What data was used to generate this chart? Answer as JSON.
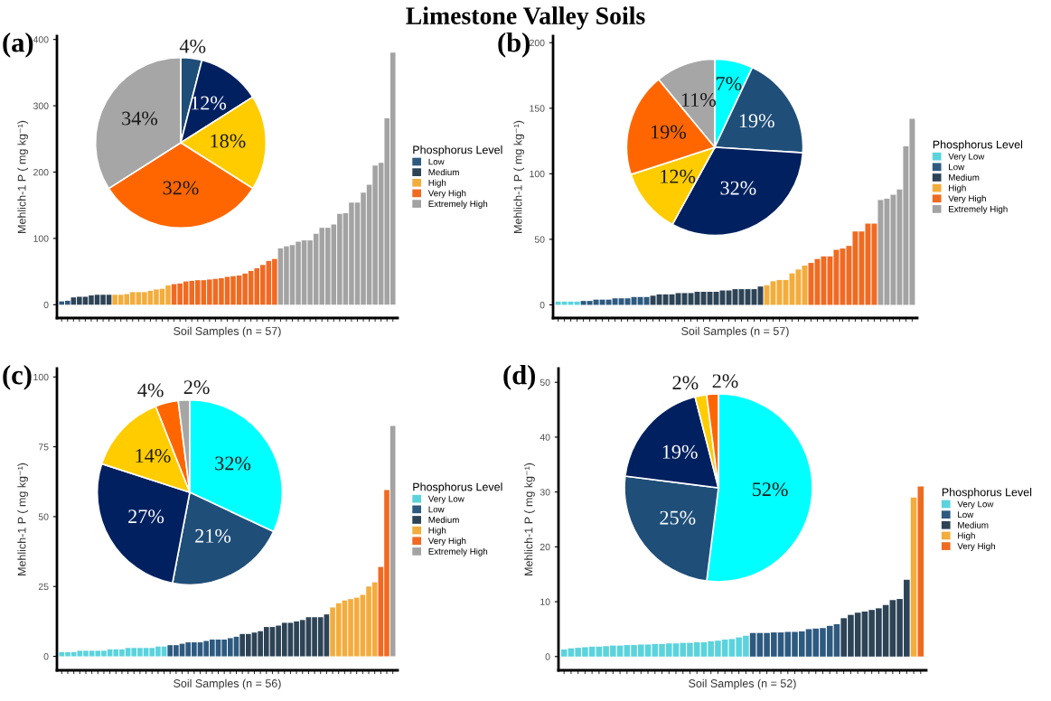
{
  "chart_data": [
    {
      "type": "bar",
      "title": "(a)",
      "annotations": [
        "Limestone Valley Soils"
      ],
      "xlabel": "Soil Samples (n = 57)",
      "ylabel": "Mehlich-1 P ( mg kg⁻¹)",
      "legend_title": "Phosphorus Level",
      "legend": "right",
      "tick_labels": "y",
      "categories": [
        null,
        null,
        null,
        null,
        null,
        null,
        null,
        null,
        null,
        null,
        null,
        null,
        null,
        null,
        null,
        null,
        null,
        null,
        null,
        null,
        null,
        null,
        null,
        null,
        null,
        null,
        null,
        null,
        null,
        null,
        null,
        null,
        null,
        null,
        null,
        null,
        null,
        null,
        null,
        null,
        null,
        null,
        null,
        null,
        null,
        null,
        null,
        null,
        null,
        null,
        null,
        null,
        null,
        null,
        null,
        null,
        null
      ],
      "ylim": [
        -20,
        405
      ],
      "yticks": [
        0,
        100,
        200,
        300,
        400
      ],
      "series": [
        {
          "name": "Low",
          "color": "#2e5a80",
          "values": [
            5,
            6,
            null,
            null,
            null,
            null,
            null,
            null,
            null,
            null,
            null,
            null,
            null,
            null,
            null,
            null,
            null,
            null,
            null,
            null,
            null,
            null,
            null,
            null,
            null,
            null,
            null,
            null,
            null,
            null,
            null,
            null,
            null,
            null,
            null,
            null,
            null,
            null,
            null,
            null,
            null,
            null,
            null,
            null,
            null,
            null,
            null,
            null,
            null,
            null,
            null,
            null,
            null,
            null,
            null,
            null,
            null
          ]
        },
        {
          "name": "Medium",
          "color": "#2d4356",
          "values": [
            null,
            null,
            11,
            12,
            12,
            14,
            15,
            15,
            15,
            null,
            null,
            null,
            null,
            null,
            null,
            null,
            null,
            null,
            null,
            null,
            null,
            null,
            null,
            null,
            null,
            null,
            null,
            null,
            null,
            null,
            null,
            null,
            null,
            null,
            null,
            null,
            null,
            null,
            null,
            null,
            null,
            null,
            null,
            null,
            null,
            null,
            null,
            null,
            null,
            null,
            null,
            null,
            null,
            null,
            null,
            null,
            null
          ]
        },
        {
          "name": "High",
          "color": "#f3ad3c",
          "values": [
            null,
            null,
            null,
            null,
            null,
            null,
            null,
            null,
            null,
            15,
            15,
            16,
            19,
            19,
            19,
            21,
            23,
            24,
            29,
            null,
            null,
            null,
            null,
            null,
            null,
            null,
            null,
            null,
            null,
            null,
            null,
            null,
            null,
            null,
            null,
            null,
            null,
            null,
            null,
            null,
            null,
            null,
            null,
            null,
            null,
            null,
            null,
            null,
            null,
            null,
            null,
            null,
            null,
            null,
            null,
            null,
            null
          ]
        },
        {
          "name": "Very High",
          "color": "#f06a22",
          "values": [
            null,
            null,
            null,
            null,
            null,
            null,
            null,
            null,
            null,
            null,
            null,
            null,
            null,
            null,
            null,
            null,
            null,
            null,
            null,
            31,
            32,
            35,
            36,
            37,
            37,
            38,
            39,
            40,
            42,
            43,
            44,
            47,
            51,
            55,
            60,
            66,
            69,
            null,
            null,
            null,
            null,
            null,
            null,
            null,
            null,
            null,
            null,
            null,
            null,
            null,
            null,
            null,
            null,
            null,
            null,
            null,
            null
          ]
        },
        {
          "name": "Extremely High",
          "color": "#a3a3a3",
          "values": [
            null,
            null,
            null,
            null,
            null,
            null,
            null,
            null,
            null,
            null,
            null,
            null,
            null,
            null,
            null,
            null,
            null,
            null,
            null,
            null,
            null,
            null,
            null,
            null,
            null,
            null,
            null,
            null,
            null,
            null,
            null,
            null,
            null,
            null,
            null,
            null,
            null,
            85,
            88,
            90,
            95,
            97,
            97,
            107,
            116,
            116,
            121,
            137,
            138,
            154,
            154,
            169,
            181,
            210,
            214,
            281,
            380
          ]
        }
      ]
    },
    {
      "type": "pie",
      "categories": [
        null,
        null,
        null,
        null,
        null
      ],
      "values": [
        4,
        12,
        18,
        32,
        34
      ],
      "value_labels": [
        "4%",
        "12%",
        "18%",
        "32%",
        "34%"
      ],
      "colors": [
        "#1f4e79",
        "#002060",
        "#ffcc00",
        "#ff6600",
        "#a6a6a6"
      ]
    },
    {
      "type": "bar",
      "title": "(b)",
      "xlabel": "Soil Samples (n = 57)",
      "ylabel": "Mehlich-1 P ( mg kg⁻¹)",
      "legend_title": "Phosphorus Level",
      "legend": "right",
      "tick_labels": "y",
      "categories": [
        null,
        null,
        null,
        null,
        null,
        null,
        null,
        null,
        null,
        null,
        null,
        null,
        null,
        null,
        null,
        null,
        null,
        null,
        null,
        null,
        null,
        null,
        null,
        null,
        null,
        null,
        null,
        null,
        null,
        null,
        null,
        null,
        null,
        null,
        null,
        null,
        null,
        null,
        null,
        null,
        null,
        null,
        null,
        null,
        null,
        null,
        null,
        null,
        null,
        null,
        null,
        null,
        null,
        null,
        null,
        null,
        null
      ],
      "ylim": [
        -10,
        205
      ],
      "yticks": [
        0,
        50,
        100,
        150,
        200
      ],
      "series": [
        {
          "name": "Very Low",
          "color": "#5bd3dd",
          "values": [
            2.5,
            2.5,
            2.5,
            2.5,
            null,
            null,
            null,
            null,
            null,
            null,
            null,
            null,
            null,
            null,
            null,
            null,
            null,
            null,
            null,
            null,
            null,
            null,
            null,
            null,
            null,
            null,
            null,
            null,
            null,
            null,
            null,
            null,
            null,
            null,
            null,
            null,
            null,
            null,
            null,
            null,
            null,
            null,
            null,
            null,
            null,
            null,
            null,
            null,
            null,
            null,
            null,
            null,
            null,
            null,
            null,
            null,
            null
          ]
        },
        {
          "name": "Low",
          "color": "#2e5a80",
          "values": [
            null,
            null,
            null,
            null,
            3,
            3,
            4,
            4,
            4,
            5,
            5,
            5,
            6,
            6,
            6,
            null,
            null,
            null,
            null,
            null,
            null,
            null,
            null,
            null,
            null,
            null,
            null,
            null,
            null,
            null,
            null,
            null,
            null,
            null,
            null,
            null,
            null,
            null,
            null,
            null,
            null,
            null,
            null,
            null,
            null,
            null,
            null,
            null,
            null,
            null,
            null,
            null,
            null,
            null,
            null,
            null,
            null
          ]
        },
        {
          "name": "Medium",
          "color": "#2d4356",
          "values": [
            null,
            null,
            null,
            null,
            null,
            null,
            null,
            null,
            null,
            null,
            null,
            null,
            null,
            null,
            null,
            7,
            8,
            8,
            8,
            9,
            9,
            9,
            10,
            10,
            10,
            10,
            11,
            11,
            12,
            12,
            12,
            12,
            14,
            null,
            null,
            null,
            null,
            null,
            null,
            null,
            null,
            null,
            null,
            null,
            null,
            null,
            null,
            null,
            null,
            null,
            null,
            null,
            null,
            null,
            null,
            null,
            null
          ]
        },
        {
          "name": "High",
          "color": "#f3ad3c",
          "values": [
            null,
            null,
            null,
            null,
            null,
            null,
            null,
            null,
            null,
            null,
            null,
            null,
            null,
            null,
            null,
            null,
            null,
            null,
            null,
            null,
            null,
            null,
            null,
            null,
            null,
            null,
            null,
            null,
            null,
            null,
            null,
            null,
            null,
            15,
            18,
            19,
            19,
            24,
            27,
            30,
            null,
            null,
            null,
            null,
            null,
            null,
            null,
            null,
            null,
            null,
            null,
            null,
            null,
            null,
            null,
            null,
            null
          ]
        },
        {
          "name": "Very High",
          "color": "#f06a22",
          "values": [
            null,
            null,
            null,
            null,
            null,
            null,
            null,
            null,
            null,
            null,
            null,
            null,
            null,
            null,
            null,
            null,
            null,
            null,
            null,
            null,
            null,
            null,
            null,
            null,
            null,
            null,
            null,
            null,
            null,
            null,
            null,
            null,
            null,
            null,
            null,
            null,
            null,
            null,
            null,
            null,
            32,
            35,
            37,
            37,
            42,
            43,
            45,
            56,
            56,
            62,
            62,
            null,
            null,
            null,
            null,
            null,
            null
          ]
        },
        {
          "name": "Extremely High",
          "color": "#a3a3a3",
          "values": [
            null,
            null,
            null,
            null,
            null,
            null,
            null,
            null,
            null,
            null,
            null,
            null,
            null,
            null,
            null,
            null,
            null,
            null,
            null,
            null,
            null,
            null,
            null,
            null,
            null,
            null,
            null,
            null,
            null,
            null,
            null,
            null,
            null,
            null,
            null,
            null,
            null,
            null,
            null,
            null,
            null,
            null,
            null,
            null,
            null,
            null,
            null,
            null,
            null,
            null,
            null,
            80,
            81,
            84,
            88,
            121,
            142
          ]
        }
      ]
    },
    {
      "type": "pie",
      "categories": [
        null,
        null,
        null,
        null,
        null,
        null
      ],
      "values": [
        7,
        19,
        32,
        12,
        19,
        11
      ],
      "value_labels": [
        "7%",
        "19%",
        "32%",
        "12%",
        "19%",
        "11%"
      ],
      "colors": [
        "#00ffff",
        "#1f4e79",
        "#002060",
        "#ffcc00",
        "#ff6600",
        "#a6a6a6"
      ]
    },
    {
      "type": "bar",
      "title": "(c)",
      "xlabel": "Soil Samples (n = 56)",
      "ylabel": "Mehlich-1 P ( mg kg⁻¹)",
      "legend_title": "Phosphorus Level",
      "legend": "right",
      "tick_labels": "y",
      "categories": [
        null,
        null,
        null,
        null,
        null,
        null,
        null,
        null,
        null,
        null,
        null,
        null,
        null,
        null,
        null,
        null,
        null,
        null,
        null,
        null,
        null,
        null,
        null,
        null,
        null,
        null,
        null,
        null,
        null,
        null,
        null,
        null,
        null,
        null,
        null,
        null,
        null,
        null,
        null,
        null,
        null,
        null,
        null,
        null,
        null,
        null,
        null,
        null,
        null,
        null,
        null,
        null,
        null,
        null,
        null,
        null
      ],
      "ylim": [
        -5,
        103
      ],
      "yticks": [
        0,
        25,
        50,
        75,
        100
      ],
      "series": [
        {
          "name": "Very Low",
          "color": "#5bd3dd",
          "values": [
            1.5,
            1.5,
            1.5,
            2,
            2,
            2,
            2,
            2,
            2.5,
            2.5,
            2.5,
            3,
            3,
            3,
            3,
            3,
            3.5,
            3.5,
            null,
            null,
            null,
            null,
            null,
            null,
            null,
            null,
            null,
            null,
            null,
            null,
            null,
            null,
            null,
            null,
            null,
            null,
            null,
            null,
            null,
            null,
            null,
            null,
            null,
            null,
            null,
            null,
            null,
            null,
            null,
            null,
            null,
            null,
            null,
            null,
            null,
            null
          ]
        },
        {
          "name": "Low",
          "color": "#2e5a80",
          "values": [
            null,
            null,
            null,
            null,
            null,
            null,
            null,
            null,
            null,
            null,
            null,
            null,
            null,
            null,
            null,
            null,
            null,
            null,
            4,
            4,
            4.5,
            5,
            5,
            5,
            5.5,
            6,
            6,
            6,
            6.5,
            7,
            null,
            null,
            null,
            null,
            null,
            null,
            null,
            null,
            null,
            null,
            null,
            null,
            null,
            null,
            null,
            null,
            null,
            null,
            null,
            null,
            null,
            null,
            null,
            null,
            null,
            null
          ]
        },
        {
          "name": "Medium",
          "color": "#2d4356",
          "values": [
            null,
            null,
            null,
            null,
            null,
            null,
            null,
            null,
            null,
            null,
            null,
            null,
            null,
            null,
            null,
            null,
            null,
            null,
            null,
            null,
            null,
            null,
            null,
            null,
            null,
            null,
            null,
            null,
            null,
            null,
            8,
            8,
            8.5,
            9,
            10.5,
            10.5,
            11,
            12,
            12,
            12.5,
            13,
            14,
            14,
            14,
            15,
            null,
            null,
            null,
            null,
            null,
            null,
            null,
            null,
            null,
            null,
            null
          ]
        },
        {
          "name": "High",
          "color": "#f3ad3c",
          "values": [
            null,
            null,
            null,
            null,
            null,
            null,
            null,
            null,
            null,
            null,
            null,
            null,
            null,
            null,
            null,
            null,
            null,
            null,
            null,
            null,
            null,
            null,
            null,
            null,
            null,
            null,
            null,
            null,
            null,
            null,
            null,
            null,
            null,
            null,
            null,
            null,
            null,
            null,
            null,
            null,
            null,
            null,
            null,
            null,
            null,
            17.5,
            19,
            20,
            20.5,
            21,
            22,
            25,
            26.5,
            null,
            null,
            null
          ]
        },
        {
          "name": "Very High",
          "color": "#f06a22",
          "values": [
            null,
            null,
            null,
            null,
            null,
            null,
            null,
            null,
            null,
            null,
            null,
            null,
            null,
            null,
            null,
            null,
            null,
            null,
            null,
            null,
            null,
            null,
            null,
            null,
            null,
            null,
            null,
            null,
            null,
            null,
            null,
            null,
            null,
            null,
            null,
            null,
            null,
            null,
            null,
            null,
            null,
            null,
            null,
            null,
            null,
            null,
            null,
            null,
            null,
            null,
            null,
            null,
            null,
            32,
            59.5,
            null
          ]
        },
        {
          "name": "Extremely High",
          "color": "#a3a3a3",
          "values": [
            null,
            null,
            null,
            null,
            null,
            null,
            null,
            null,
            null,
            null,
            null,
            null,
            null,
            null,
            null,
            null,
            null,
            null,
            null,
            null,
            null,
            null,
            null,
            null,
            null,
            null,
            null,
            null,
            null,
            null,
            null,
            null,
            null,
            null,
            null,
            null,
            null,
            null,
            null,
            null,
            null,
            null,
            null,
            null,
            null,
            null,
            null,
            null,
            null,
            null,
            null,
            null,
            null,
            null,
            null,
            82.5
          ]
        }
      ]
    },
    {
      "type": "pie",
      "categories": [
        null,
        null,
        null,
        null,
        null,
        null
      ],
      "values": [
        32,
        21,
        27,
        14,
        4,
        2
      ],
      "value_labels": [
        "32%",
        "21%",
        "27%",
        "14%",
        "4%",
        "2%"
      ],
      "colors": [
        "#00ffff",
        "#1f4e79",
        "#002060",
        "#ffcc00",
        "#ff6600",
        "#a6a6a6"
      ]
    },
    {
      "type": "bar",
      "title": "(d)",
      "xlabel": "Soil Samples (n = 52)",
      "ylabel": "Mehlich-1 P ( mg kg⁻¹)",
      "legend_title": "Phosphorus Level",
      "legend": "right",
      "tick_labels": "y",
      "categories": [
        null,
        null,
        null,
        null,
        null,
        null,
        null,
        null,
        null,
        null,
        null,
        null,
        null,
        null,
        null,
        null,
        null,
        null,
        null,
        null,
        null,
        null,
        null,
        null,
        null,
        null,
        null,
        null,
        null,
        null,
        null,
        null,
        null,
        null,
        null,
        null,
        null,
        null,
        null,
        null,
        null,
        null,
        null,
        null,
        null,
        null,
        null,
        null,
        null,
        null,
        null,
        null
      ],
      "ylim": [
        -2.5,
        52.5
      ],
      "yticks": [
        0,
        10,
        20,
        30,
        40,
        50
      ],
      "series": [
        {
          "name": "Very Low",
          "color": "#5bd3dd",
          "values": [
            1.3,
            1.5,
            1.6,
            1.7,
            1.8,
            1.8,
            1.9,
            2,
            2,
            2.1,
            2.1,
            2.2,
            2.2,
            2.3,
            2.3,
            2.4,
            2.4,
            2.5,
            2.5,
            2.6,
            2.6,
            2.8,
            2.9,
            3.1,
            3.2,
            3.5,
            3.8,
            null,
            null,
            null,
            null,
            null,
            null,
            null,
            null,
            null,
            null,
            null,
            null,
            null,
            null,
            null,
            null,
            null,
            null,
            null,
            null,
            null,
            null,
            null,
            null,
            null
          ]
        },
        {
          "name": "Low",
          "color": "#2e5a80",
          "values": [
            null,
            null,
            null,
            null,
            null,
            null,
            null,
            null,
            null,
            null,
            null,
            null,
            null,
            null,
            null,
            null,
            null,
            null,
            null,
            null,
            null,
            null,
            null,
            null,
            null,
            null,
            null,
            4.3,
            4.3,
            4.3,
            4.4,
            4.4,
            4.5,
            4.5,
            4.6,
            5,
            5.1,
            5.2,
            5.6,
            5.9,
            null,
            null,
            null,
            null,
            null,
            null,
            null,
            null,
            null,
            null,
            null,
            null
          ]
        },
        {
          "name": "Medium",
          "color": "#2d4356",
          "values": [
            null,
            null,
            null,
            null,
            null,
            null,
            null,
            null,
            null,
            null,
            null,
            null,
            null,
            null,
            null,
            null,
            null,
            null,
            null,
            null,
            null,
            null,
            null,
            null,
            null,
            null,
            null,
            null,
            null,
            null,
            null,
            null,
            null,
            null,
            null,
            null,
            null,
            null,
            null,
            null,
            7,
            7.6,
            8,
            8.2,
            8.5,
            8.8,
            9.4,
            10.3,
            10.5,
            14,
            null,
            null
          ]
        },
        {
          "name": "High",
          "color": "#f3ad3c",
          "values": [
            null,
            null,
            null,
            null,
            null,
            null,
            null,
            null,
            null,
            null,
            null,
            null,
            null,
            null,
            null,
            null,
            null,
            null,
            null,
            null,
            null,
            null,
            null,
            null,
            null,
            null,
            null,
            null,
            null,
            null,
            null,
            null,
            null,
            null,
            null,
            null,
            null,
            null,
            null,
            null,
            null,
            null,
            null,
            null,
            null,
            null,
            null,
            null,
            null,
            null,
            29,
            null
          ]
        },
        {
          "name": "Very High",
          "color": "#f06a22",
          "values": [
            null,
            null,
            null,
            null,
            null,
            null,
            null,
            null,
            null,
            null,
            null,
            null,
            null,
            null,
            null,
            null,
            null,
            null,
            null,
            null,
            null,
            null,
            null,
            null,
            null,
            null,
            null,
            null,
            null,
            null,
            null,
            null,
            null,
            null,
            null,
            null,
            null,
            null,
            null,
            null,
            null,
            null,
            null,
            null,
            null,
            null,
            null,
            null,
            null,
            null,
            null,
            31
          ]
        }
      ]
    },
    {
      "type": "pie",
      "categories": [
        null,
        null,
        null,
        null,
        null
      ],
      "values": [
        52,
        25,
        19,
        2,
        2
      ],
      "value_labels": [
        "52%",
        "25%",
        "19%",
        "2%",
        "2%"
      ],
      "colors": [
        "#00ffff",
        "#1f4e79",
        "#002060",
        "#ffcc00",
        "#ff6600"
      ]
    }
  ]
}
